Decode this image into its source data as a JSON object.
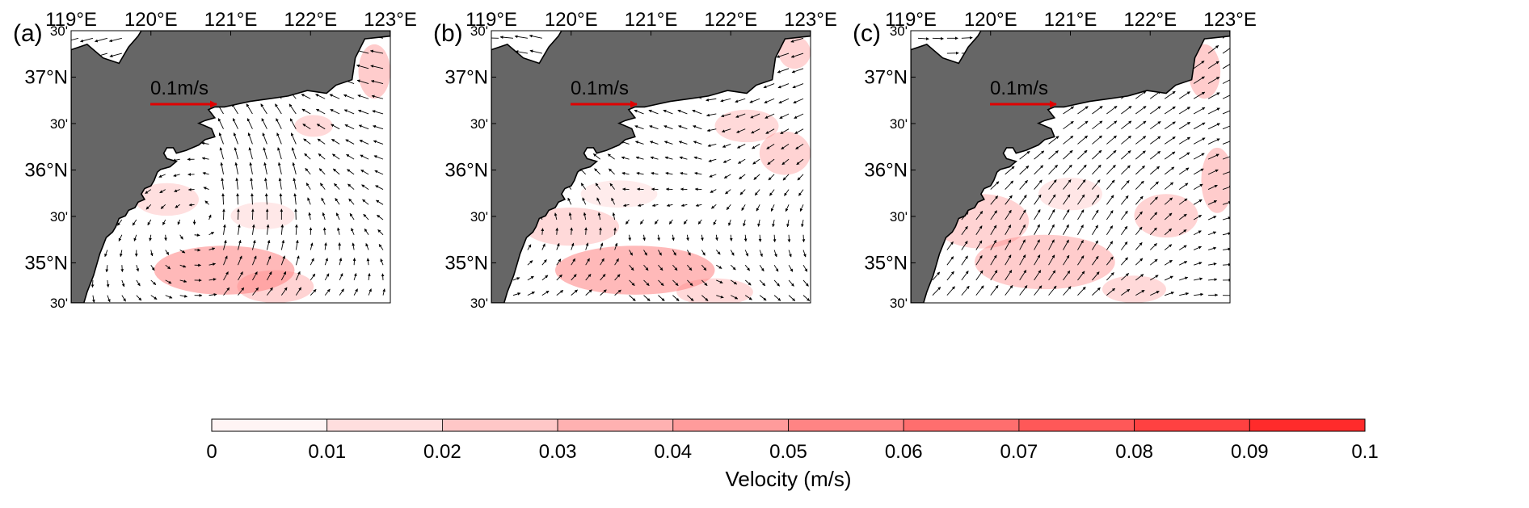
{
  "panels": [
    {
      "letter": "(a)",
      "scale_label": "0.1m/s"
    },
    {
      "letter": "(b)",
      "scale_label": "0.1m/s"
    },
    {
      "letter": "(c)",
      "scale_label": "0.1m/s"
    }
  ],
  "lon_ticks": [
    "119°E",
    "120°E",
    "121°E",
    "122°E",
    "123°E"
  ],
  "lat_ticks": [
    "30'",
    "37°N",
    "30'",
    "36°N",
    "30'",
    "35°N",
    "30'"
  ],
  "colorbar": {
    "title": "Velocity (m/s)",
    "ticks": [
      "0",
      "0.01",
      "0.02",
      "0.03",
      "0.04",
      "0.05",
      "0.06",
      "0.07",
      "0.08",
      "0.09",
      "0.1"
    ],
    "color_low": "#ffffff",
    "color_high": "#ff2020"
  },
  "colors": {
    "land": "#666666",
    "coastline": "#000000",
    "scale_arrow": "#e00000",
    "current_vectors": "#000000",
    "speed_shading": "#ff8080"
  },
  "icons": {
    "current_vector": "arrow-icon",
    "scale_vector": "red-arrow-icon"
  }
}
